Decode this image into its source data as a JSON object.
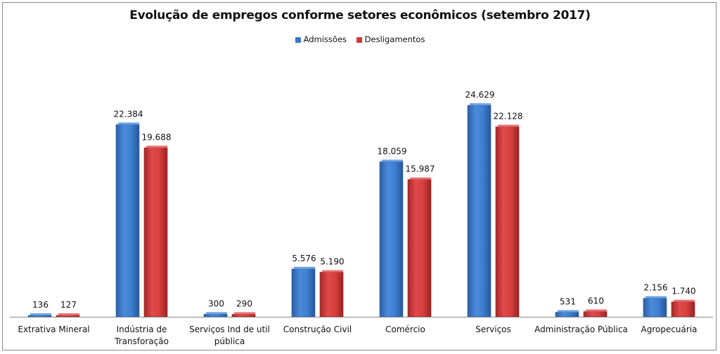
{
  "chart_data": {
    "type": "bar",
    "title": "Evolução de empregos conforme setores econômicos (setembro 2017)",
    "categories": [
      [
        "Extrativa Mineral"
      ],
      [
        "Indústria de",
        "Transforação"
      ],
      [
        "Serviços Ind de util",
        "pública"
      ],
      [
        "Construção Civil"
      ],
      [
        "Comércio"
      ],
      [
        "Serviços"
      ],
      [
        "Administração Pública"
      ],
      [
        "Agropecuária"
      ]
    ],
    "series": [
      {
        "name": "Admissões",
        "color": "#3A78C8",
        "values": [
          136,
          22384,
          300,
          5576,
          18059,
          24629,
          531,
          2156
        ],
        "labels": [
          "136",
          "22.384",
          "300",
          "5.576",
          "18.059",
          "24.629",
          "531",
          "2.156"
        ]
      },
      {
        "name": "Desligamentos",
        "color": "#D23A3A",
        "values": [
          127,
          19688,
          290,
          5190,
          15987,
          22128,
          610,
          1740
        ],
        "labels": [
          "127",
          "19.688",
          "290",
          "5.190",
          "15.987",
          "22.128",
          "610",
          "1.740"
        ]
      }
    ],
    "ylim": [
      0,
      24629
    ],
    "grid": false,
    "legend": "top"
  }
}
